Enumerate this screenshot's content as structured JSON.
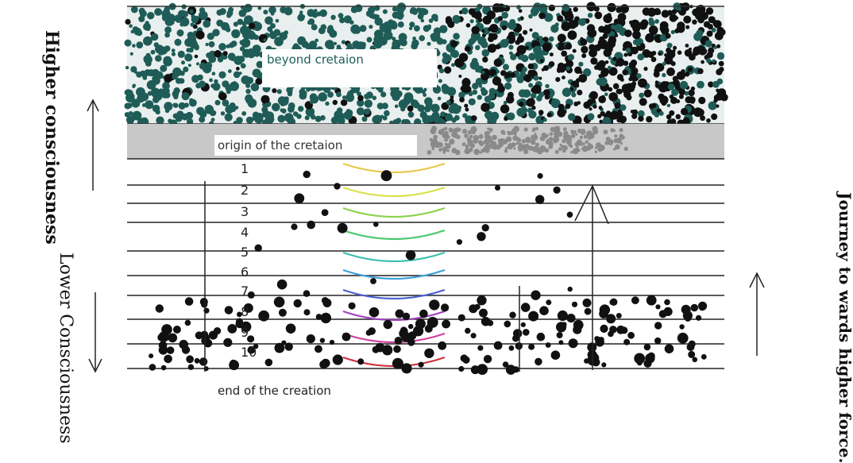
{
  "labels": {
    "higher_consciousness": "Higher consciousness",
    "lower_consciousness": "Lower Consciousness",
    "journey": "Journey to wards higher force.",
    "beyond_creation": "beyond cretaion",
    "origin_of_creation": "origin of the cretaion",
    "end_of_creation": "end of the creation"
  },
  "levels": [
    "1",
    "2",
    "3",
    "4",
    "5",
    "6",
    "7",
    "8",
    "9",
    "10"
  ],
  "colors": {
    "teal_noise": "#1f5c57",
    "grey_band": "#c8c8c8",
    "dark_noise": "#111111",
    "arc_colors": [
      "#e8c84a",
      "#d9e24a",
      "#8bd24a",
      "#4ac86a",
      "#3ac0b0",
      "#3aa0d8",
      "#4a60d0",
      "#a040c0",
      "#d040a0",
      "#d03040"
    ]
  }
}
